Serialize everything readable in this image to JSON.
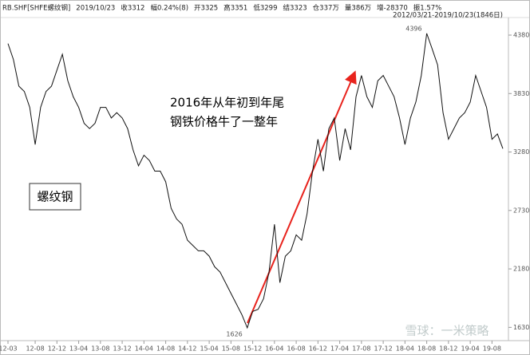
{
  "chart_data": {
    "type": "line",
    "info": [
      {
        "label": "RB.SHF[SHFE螺纹钢]",
        "value": "",
        "color": "#222"
      },
      {
        "label": "2019/10/23",
        "value": "",
        "color": "#222"
      },
      {
        "label": "收",
        "value": "3312",
        "color": "#e00000"
      },
      {
        "label": "幅",
        "value": "0.24%(8)",
        "color": "#e00000"
      },
      {
        "label": "开",
        "value": "3325",
        "color": "#e00000"
      },
      {
        "label": "高",
        "value": "3351",
        "color": "#e00000"
      },
      {
        "label": "低",
        "value": "3299",
        "color": "#008000"
      },
      {
        "label": "结",
        "value": "3323",
        "color": "#e00000"
      },
      {
        "label": "仓",
        "value": "337万",
        "color": "#222"
      },
      {
        "label": "量",
        "value": "386万",
        "color": "#222"
      },
      {
        "label": "增",
        "value": "-28370",
        "color": "#008000"
      },
      {
        "label": "振",
        "value": "1.57%",
        "color": "#222"
      }
    ],
    "range_label": "2012/03/21-2019/10/23(1846日)",
    "annotations": [
      "2016年从年初到年尾",
      "钢铁价格牛了一整年"
    ],
    "box_label": "螺纹钢",
    "watermark": "雪球：一米策略",
    "categories": [
      "12-03",
      null,
      null,
      null,
      null,
      "12-08",
      null,
      null,
      null,
      "12-12",
      null,
      null,
      null,
      "13-04",
      null,
      null,
      null,
      "13-08",
      null,
      null,
      null,
      "13-12",
      null,
      null,
      null,
      "14-04",
      null,
      null,
      null,
      "14-08",
      null,
      null,
      null,
      "14-12",
      null,
      null,
      null,
      "15-04",
      null,
      null,
      null,
      "15-08",
      null,
      null,
      null,
      "15-12",
      null,
      null,
      null,
      "16-04",
      null,
      null,
      null,
      "16-08",
      null,
      null,
      null,
      "16-12",
      null,
      null,
      null,
      "17-04",
      null,
      null,
      null,
      "17-08",
      null,
      null,
      null,
      "17-12",
      null,
      null,
      null,
      "18-04",
      null,
      null,
      null,
      "18-08",
      null,
      null,
      null,
      "18-12",
      null,
      null,
      null,
      "19-04",
      null,
      null,
      null,
      "19-08",
      null,
      null
    ],
    "values": [
      4300,
      4150,
      3900,
      3850,
      3700,
      3350,
      3700,
      3850,
      3900,
      4050,
      4200,
      3950,
      3800,
      3700,
      3550,
      3500,
      3550,
      3700,
      3700,
      3600,
      3650,
      3600,
      3500,
      3300,
      3150,
      3250,
      3200,
      3100,
      3100,
      3000,
      2750,
      2650,
      2600,
      2450,
      2400,
      2350,
      2350,
      2300,
      2200,
      2150,
      2050,
      1950,
      1850,
      1750,
      1626,
      1780,
      1800,
      1900,
      2150,
      2600,
      2050,
      2300,
      2350,
      2500,
      2450,
      2700,
      3100,
      3400,
      3100,
      3500,
      3600,
      3200,
      3500,
      3300,
      3800,
      4000,
      3800,
      3700,
      3950,
      4000,
      3900,
      3800,
      3600,
      3350,
      3600,
      3750,
      4000,
      4396,
      4250,
      4100,
      3650,
      3400,
      3500,
      3600,
      3650,
      3750,
      4000,
      3850,
      3700,
      3400,
      3450,
      3312
    ],
    "value_labels": [
      null,
      null,
      null,
      null,
      null,
      null,
      null,
      null,
      null,
      null,
      null,
      null,
      null,
      null,
      null,
      null,
      null,
      null,
      null,
      null,
      null,
      null,
      null,
      null,
      null,
      null,
      null,
      null,
      null,
      null,
      null,
      null,
      null,
      null,
      null,
      null,
      null,
      null,
      null,
      null,
      null,
      null,
      null,
      null,
      "1626",
      null,
      null,
      null,
      null,
      null,
      null,
      null,
      null,
      null,
      null,
      null,
      null,
      null,
      null,
      null,
      null,
      null,
      null,
      null,
      null,
      null,
      null,
      null,
      null,
      null,
      null,
      null,
      null,
      null,
      null,
      null,
      null,
      "4396",
      null,
      null,
      null,
      null,
      null,
      null,
      null,
      null,
      null,
      null,
      null,
      null,
      null,
      null
    ],
    "color": "#111111",
    "high_color": "#e00000",
    "low_color": "#008000",
    "ylim": [
      1520,
      4410
    ],
    "yticks": [
      1630,
      2180,
      2730,
      3280,
      3830,
      4380
    ],
    "grid": false
  }
}
